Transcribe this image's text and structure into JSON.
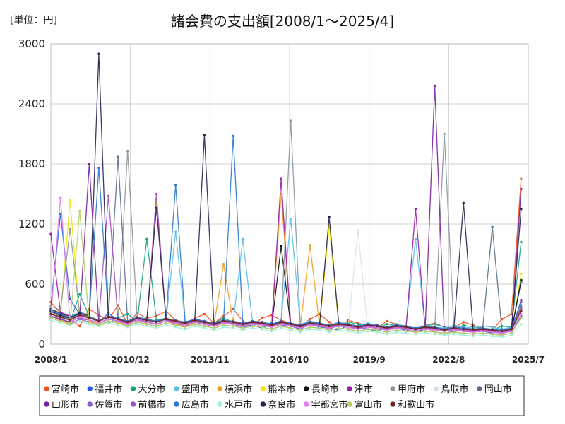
{
  "chart_data": {
    "type": "line",
    "title": "諸会費の支出額[2008/1～2025/4]",
    "unit_label": "[単位：円]",
    "ylim": [
      0,
      3000
    ],
    "y_ticks": [
      "0",
      "600",
      "1200",
      "1800",
      "2400",
      "3000"
    ],
    "x_ticks": [
      "2008/1",
      "2010/12",
      "2013/11",
      "2016/10",
      "2019/9",
      "2022/8",
      "2025/7"
    ],
    "grid": true,
    "legend_position": "bottom",
    "series": [
      {
        "name": "宮崎市",
        "color": "#f0531f",
        "values": [
          420,
          310,
          260,
          180,
          350,
          290,
          240,
          390,
          200,
          310,
          260,
          280,
          330,
          240,
          190,
          260,
          300,
          210,
          280,
          350,
          230,
          190,
          260,
          290,
          240,
          210,
          180,
          250,
          300,
          220,
          170,
          240,
          210,
          190,
          160,
          230,
          200,
          180,
          150,
          190,
          210,
          170,
          160,
          220,
          190,
          160,
          140,
          250,
          300,
          1650
        ]
      },
      {
        "name": "福井市",
        "color": "#1f5fe0",
        "values": [
          380,
          1300,
          450,
          300,
          260,
          220,
          310,
          240,
          200,
          260,
          230,
          210,
          250,
          190,
          170,
          230,
          210,
          180,
          240,
          200,
          170,
          190,
          160,
          210,
          190,
          180,
          150,
          200,
          170,
          160,
          140,
          190,
          170,
          150,
          130,
          170,
          160,
          140,
          120,
          150,
          170,
          140,
          120,
          160,
          140,
          130,
          110,
          150,
          140,
          620
        ]
      },
      {
        "name": "大分市",
        "color": "#1aa37a",
        "values": [
          260,
          300,
          220,
          500,
          280,
          240,
          210,
          260,
          300,
          230,
          1050,
          240,
          260,
          220,
          200,
          250,
          230,
          210,
          260,
          220,
          200,
          230,
          210,
          190,
          220,
          200,
          180,
          230,
          210,
          190,
          170,
          220,
          200,
          180,
          160,
          200,
          190,
          170,
          150,
          180,
          200,
          170,
          150,
          190,
          170,
          160,
          140,
          180,
          170,
          1020
        ]
      },
      {
        "name": "盛岡市",
        "color": "#5bc0eb",
        "values": [
          300,
          260,
          230,
          280,
          250,
          220,
          260,
          240,
          210,
          250,
          230,
          210,
          240,
          1120,
          220,
          250,
          230,
          200,
          240,
          220,
          1050,
          230,
          210,
          190,
          240,
          1250,
          200,
          230,
          210,
          190,
          220,
          200,
          180,
          210,
          190,
          170,
          200,
          180,
          1050,
          190,
          170,
          160,
          190,
          170,
          160,
          180,
          170,
          150,
          170,
          260
        ]
      },
      {
        "name": "横浜市",
        "color": "#f0a020",
        "values": [
          280,
          240,
          210,
          300,
          230,
          200,
          260,
          220,
          190,
          240,
          210,
          1450,
          230,
          200,
          180,
          220,
          210,
          190,
          800,
          210,
          180,
          200,
          190,
          170,
          1500,
          200,
          180,
          990,
          190,
          170,
          200,
          180,
          160,
          190,
          170,
          150,
          180,
          160,
          150,
          170,
          160,
          140,
          160,
          150,
          140,
          150,
          140,
          130,
          150,
          360
        ]
      },
      {
        "name": "熊本市",
        "color": "#f2e600",
        "values": [
          300,
          270,
          1440,
          260,
          240,
          210,
          250,
          230,
          200,
          240,
          220,
          200,
          230,
          210,
          190,
          220,
          200,
          180,
          210,
          200,
          180,
          200,
          190,
          170,
          200,
          180,
          160,
          190,
          180,
          1180,
          180,
          170,
          150,
          170,
          160,
          140,
          160,
          150,
          140,
          150,
          140,
          130,
          140,
          130,
          120,
          130,
          120,
          110,
          130,
          700
        ]
      },
      {
        "name": "長崎市",
        "color": "#111111",
        "values": [
          350,
          310,
          280,
          260,
          240,
          220,
          260,
          230,
          210,
          240,
          220,
          200,
          230,
          210,
          190,
          220,
          200,
          180,
          210,
          200,
          180,
          200,
          190,
          170,
          980,
          180,
          160,
          190,
          180,
          160,
          180,
          170,
          150,
          170,
          160,
          140,
          160,
          150,
          140,
          150,
          140,
          130,
          140,
          130,
          120,
          130,
          120,
          110,
          130,
          640
        ]
      },
      {
        "name": "津市",
        "color": "#9c1aa8",
        "values": [
          1100,
          320,
          280,
          260,
          240,
          220,
          260,
          230,
          210,
          240,
          220,
          200,
          230,
          210,
          190,
          220,
          200,
          180,
          210,
          200,
          180,
          200,
          190,
          170,
          1650,
          180,
          160,
          190,
          180,
          160,
          180,
          170,
          150,
          170,
          160,
          140,
          160,
          150,
          1350,
          150,
          140,
          130,
          140,
          130,
          120,
          130,
          120,
          110,
          130,
          440
        ]
      },
      {
        "name": "甲府市",
        "color": "#8c96a0",
        "values": [
          380,
          340,
          1150,
          300,
          260,
          240,
          280,
          250,
          1930,
          260,
          240,
          220,
          250,
          230,
          210,
          240,
          220,
          200,
          230,
          220,
          200,
          220,
          210,
          190,
          220,
          2230,
          180,
          210,
          200,
          180,
          200,
          190,
          170,
          190,
          180,
          160,
          180,
          170,
          150,
          170,
          160,
          2100,
          160,
          150,
          140,
          150,
          140,
          130,
          140,
          390
        ]
      },
      {
        "name": "鳥取市",
        "color": "#d6e2ea",
        "values": [
          300,
          260,
          230,
          280,
          250,
          220,
          260,
          240,
          210,
          250,
          230,
          210,
          240,
          220,
          200,
          230,
          210,
          190,
          220,
          210,
          190,
          210,
          200,
          180,
          210,
          190,
          170,
          200,
          190,
          170,
          190,
          180,
          1140,
          180,
          170,
          150,
          170,
          160,
          140,
          160,
          150,
          130,
          150,
          140,
          130,
          140,
          130,
          120,
          140,
          300
        ]
      },
      {
        "name": "岡山市",
        "color": "#5a6e8c",
        "values": [
          320,
          280,
          250,
          300,
          270,
          240,
          280,
          1870,
          230,
          270,
          250,
          230,
          260,
          240,
          220,
          250,
          230,
          210,
          240,
          230,
          210,
          230,
          220,
          200,
          230,
          210,
          190,
          220,
          210,
          190,
          210,
          200,
          180,
          200,
          190,
          170,
          190,
          180,
          160,
          180,
          170,
          150,
          170,
          160,
          150,
          160,
          1170,
          140,
          160,
          370
        ]
      },
      {
        "name": "山形市",
        "color": "#7a1fa0",
        "values": [
          280,
          250,
          220,
          270,
          1800,
          210,
          250,
          230,
          200,
          240,
          220,
          200,
          230,
          210,
          190,
          220,
          200,
          180,
          210,
          200,
          180,
          200,
          190,
          170,
          200,
          180,
          160,
          190,
          180,
          160,
          180,
          170,
          150,
          170,
          160,
          140,
          160,
          150,
          140,
          150,
          2580,
          130,
          140,
          130,
          120,
          130,
          120,
          110,
          130,
          1550
        ]
      },
      {
        "name": "佐賀市",
        "color": "#8a60d0",
        "values": [
          260,
          230,
          200,
          250,
          220,
          190,
          230,
          210,
          180,
          220,
          200,
          180,
          210,
          190,
          170,
          200,
          180,
          160,
          190,
          180,
          160,
          180,
          170,
          150,
          180,
          160,
          140,
          170,
          160,
          140,
          160,
          150,
          130,
          150,
          140,
          120,
          140,
          130,
          120,
          130,
          120,
          110,
          120,
          110,
          100,
          110,
          100,
          90,
          110,
          280
        ]
      },
      {
        "name": "前橋市",
        "color": "#a050c0",
        "values": [
          300,
          270,
          240,
          290,
          260,
          230,
          1480,
          240,
          210,
          250,
          230,
          1500,
          240,
          220,
          200,
          230,
          210,
          190,
          220,
          210,
          190,
          210,
          200,
          180,
          210,
          190,
          170,
          200,
          190,
          170,
          190,
          180,
          160,
          180,
          170,
          150,
          170,
          160,
          140,
          160,
          150,
          130,
          150,
          140,
          130,
          140,
          130,
          120,
          140,
          350
        ]
      },
      {
        "name": "広島市",
        "color": "#2a78d0",
        "values": [
          340,
          300,
          270,
          320,
          290,
          1760,
          280,
          260,
          230,
          270,
          250,
          230,
          260,
          1590,
          220,
          250,
          230,
          210,
          240,
          2080,
          210,
          230,
          220,
          200,
          230,
          210,
          190,
          220,
          210,
          190,
          210,
          200,
          180,
          200,
          190,
          170,
          190,
          180,
          160,
          180,
          170,
          150,
          170,
          160,
          150,
          160,
          150,
          140,
          160,
          420
        ]
      },
      {
        "name": "水戸市",
        "color": "#a0f0d8",
        "values": [
          240,
          210,
          190,
          230,
          200,
          180,
          210,
          190,
          170,
          200,
          180,
          160,
          190,
          170,
          150,
          180,
          160,
          140,
          170,
          160,
          140,
          160,
          150,
          130,
          160,
          140,
          120,
          150,
          140,
          120,
          140,
          130,
          110,
          130,
          120,
          100,
          120,
          110,
          100,
          110,
          100,
          90,
          100,
          90,
          80,
          90,
          80,
          70,
          90,
          200
        ]
      },
      {
        "name": "奈良市",
        "color": "#2a2050",
        "values": [
          330,
          290,
          260,
          310,
          280,
          2900,
          270,
          250,
          220,
          260,
          240,
          1360,
          250,
          230,
          210,
          240,
          2090,
          200,
          230,
          220,
          200,
          220,
          210,
          190,
          220,
          200,
          180,
          210,
          200,
          1270,
          200,
          190,
          170,
          190,
          180,
          160,
          180,
          170,
          150,
          170,
          160,
          140,
          160,
          1410,
          140,
          150,
          140,
          130,
          150,
          1350
        ]
      },
      {
        "name": "宇都宮市",
        "color": "#e080f0",
        "values": [
          280,
          1460,
          220,
          270,
          240,
          210,
          250,
          230,
          200,
          240,
          220,
          200,
          230,
          210,
          190,
          220,
          200,
          180,
          210,
          200,
          180,
          200,
          190,
          170,
          200,
          180,
          160,
          190,
          180,
          160,
          180,
          170,
          150,
          170,
          160,
          140,
          160,
          150,
          140,
          150,
          140,
          130,
          140,
          130,
          120,
          130,
          120,
          110,
          130,
          300
        ]
      },
      {
        "name": "富山市",
        "color": "#b8d060",
        "values": [
          260,
          230,
          200,
          1330,
          220,
          190,
          230,
          210,
          180,
          220,
          200,
          180,
          210,
          190,
          170,
          200,
          180,
          160,
          190,
          180,
          160,
          180,
          170,
          150,
          180,
          160,
          140,
          170,
          160,
          140,
          160,
          150,
          130,
          150,
          140,
          120,
          140,
          130,
          120,
          130,
          120,
          110,
          120,
          110,
          100,
          110,
          100,
          90,
          110,
          260
        ]
      },
      {
        "name": "和歌山市",
        "color": "#7a2020",
        "values": [
          300,
          270,
          240,
          290,
          260,
          230,
          270,
          250,
          220,
          260,
          240,
          220,
          250,
          230,
          210,
          240,
          220,
          200,
          230,
          220,
          200,
          220,
          210,
          190,
          220,
          200,
          180,
          210,
          200,
          180,
          200,
          190,
          170,
          190,
          180,
          160,
          180,
          170,
          150,
          170,
          160,
          140,
          160,
          150,
          140,
          150,
          140,
          130,
          150,
          330
        ]
      }
    ]
  }
}
